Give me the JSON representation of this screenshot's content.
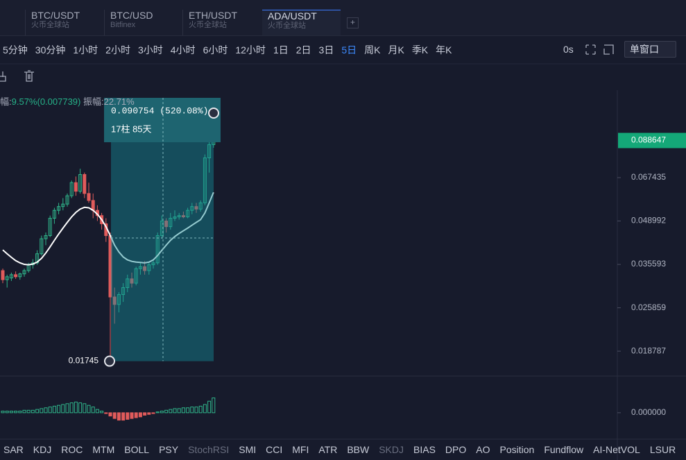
{
  "tabs": [
    {
      "symbol": "BTC/USDT",
      "exchange": "火币全球站"
    },
    {
      "symbol": "BTC/USD",
      "exchange": "Bitfinex"
    },
    {
      "symbol": "ETH/USDT",
      "exchange": "火币全球站"
    },
    {
      "symbol": "ADA/USDT",
      "exchange": "火币全球站"
    }
  ],
  "add_tab": "+",
  "intervals": [
    "5分钟",
    "30分钟",
    "1小时",
    "2小时",
    "3小时",
    "4小时",
    "6小时",
    "12小时",
    "1日",
    "2日",
    "3日",
    "5日",
    "周K",
    "月K",
    "季K",
    "年K"
  ],
  "countdown": "0s",
  "window_mode": "单窗口",
  "info": {
    "change_label": "幅:",
    "change": "9.57%(0.007739)",
    "amplitude_label": "振幅:",
    "amplitude": "22.71%"
  },
  "measure": {
    "price_change": "0.090754 (520.08%)",
    "span": "17柱 85天",
    "low": 0.01745
  },
  "price_axis": {
    "ylim": [
      0.0158,
      0.1284
    ],
    "log": true,
    "ticks": [
      0.067435,
      0.048992,
      0.035593,
      0.025859,
      0.018787
    ],
    "last_price": 0.088647
  },
  "candles": [
    [
      0.034,
      0.0345,
      0.031,
      0.0318
    ],
    [
      0.0318,
      0.033,
      0.03,
      0.0325
    ],
    [
      0.0322,
      0.0335,
      0.0315,
      0.033
    ],
    [
      0.033,
      0.0338,
      0.032,
      0.0325
    ],
    [
      0.0325,
      0.0335,
      0.0318,
      0.0332
    ],
    [
      0.0332,
      0.0345,
      0.0325,
      0.034
    ],
    [
      0.034,
      0.036,
      0.0335,
      0.0355
    ],
    [
      0.0355,
      0.037,
      0.0345,
      0.036
    ],
    [
      0.036,
      0.0395,
      0.0355,
      0.0385
    ],
    [
      0.0385,
      0.044,
      0.038,
      0.043
    ],
    [
      0.043,
      0.045,
      0.041,
      0.044
    ],
    [
      0.044,
      0.051,
      0.0435,
      0.05
    ],
    [
      0.05,
      0.054,
      0.048,
      0.053
    ],
    [
      0.053,
      0.056,
      0.0515,
      0.0545
    ],
    [
      0.0545,
      0.058,
      0.053,
      0.0555
    ],
    [
      0.0555,
      0.06,
      0.0545,
      0.059
    ],
    [
      0.059,
      0.066,
      0.058,
      0.065
    ],
    [
      0.065,
      0.068,
      0.059,
      0.061
    ],
    [
      0.061,
      0.072,
      0.06,
      0.069
    ],
    [
      0.069,
      0.07,
      0.058,
      0.06
    ],
    [
      0.06,
      0.065,
      0.056,
      0.057
    ],
    [
      0.057,
      0.06,
      0.05,
      0.053
    ],
    [
      0.053,
      0.055,
      0.049,
      0.051
    ],
    [
      0.051,
      0.052,
      0.046,
      0.048
    ],
    [
      0.048,
      0.05,
      0.042,
      0.044
    ],
    [
      0.044,
      0.045,
      0.01745,
      0.028
    ],
    [
      0.028,
      0.03,
      0.023,
      0.0265
    ],
    [
      0.0265,
      0.029,
      0.025,
      0.0285
    ],
    [
      0.0285,
      0.031,
      0.027,
      0.03
    ],
    [
      0.03,
      0.033,
      0.029,
      0.032
    ],
    [
      0.032,
      0.0335,
      0.03,
      0.031
    ],
    [
      0.031,
      0.035,
      0.0305,
      0.0345
    ],
    [
      0.0345,
      0.036,
      0.033,
      0.035
    ],
    [
      0.035,
      0.0365,
      0.033,
      0.034
    ],
    [
      0.034,
      0.036,
      0.033,
      0.0355
    ],
    [
      0.0355,
      0.037,
      0.0345,
      0.036
    ],
    [
      0.036,
      0.045,
      0.0355,
      0.044
    ],
    [
      0.044,
      0.051,
      0.043,
      0.049
    ],
    [
      0.049,
      0.05,
      0.045,
      0.047
    ],
    [
      0.047,
      0.052,
      0.046,
      0.05
    ],
    [
      0.05,
      0.053,
      0.049,
      0.0505
    ],
    [
      0.0505,
      0.052,
      0.0495,
      0.051
    ],
    [
      0.051,
      0.0525,
      0.05,
      0.0505
    ],
    [
      0.0505,
      0.054,
      0.05,
      0.053
    ],
    [
      0.053,
      0.056,
      0.0515,
      0.0545
    ],
    [
      0.0545,
      0.056,
      0.052,
      0.0535
    ],
    [
      0.0535,
      0.057,
      0.0525,
      0.056
    ],
    [
      0.056,
      0.08,
      0.055,
      0.078
    ],
    [
      0.078,
      0.088,
      0.07,
      0.086
    ],
    [
      0.086,
      0.0907,
      0.084,
      0.0886
    ]
  ],
  "ma": [
    0.0396,
    0.0385,
    0.0375,
    0.0366,
    0.036,
    0.0356,
    0.0355,
    0.0357,
    0.0362,
    0.0372,
    0.0387,
    0.0405,
    0.0425,
    0.0445,
    0.0465,
    0.0485,
    0.0505,
    0.0522,
    0.0535,
    0.0542,
    0.054,
    0.053,
    0.0515,
    0.0495,
    0.047,
    0.044,
    0.041,
    0.039,
    0.0376,
    0.0368,
    0.0364,
    0.0362,
    0.0361,
    0.036,
    0.0362,
    0.0368,
    0.038,
    0.0395,
    0.041,
    0.0425,
    0.0437,
    0.0447,
    0.0456,
    0.0465,
    0.0475,
    0.0485,
    0.0495,
    0.052,
    0.056,
    0.0605
  ],
  "macd": {
    "ylim": [
      -0.0038,
      0.0042
    ],
    "ticks": [
      {
        "value": 0,
        "label": "0.000000"
      }
    ],
    "values": [
      0.0002,
      0.0002,
      0.0002,
      0.0002,
      0.0002,
      0.0003,
      0.0003,
      0.0003,
      0.0004,
      0.0005,
      0.0006,
      0.0007,
      0.0008,
      0.0009,
      0.001,
      0.0011,
      0.0012,
      0.0013,
      0.0012,
      0.0011,
      0.0009,
      0.0007,
      0.0004,
      0.0002,
      -0.0001,
      -0.0004,
      -0.0007,
      -0.0009,
      -0.0009,
      -0.0008,
      -0.0007,
      -0.0006,
      -0.0005,
      -0.0003,
      -0.0002,
      -0.0001,
      0.0001,
      0.0002,
      0.0003,
      0.0004,
      0.0005,
      0.0005,
      0.0006,
      0.0006,
      0.0007,
      0.0007,
      0.0008,
      0.001,
      0.0014,
      0.0018
    ]
  },
  "indicators": [
    "SAR",
    "KDJ",
    "ROC",
    "MTM",
    "BOLL",
    "PSY",
    "StochRSI",
    "SMI",
    "CCI",
    "MFI",
    "ATR",
    "BBW",
    "SKDJ",
    "BIAS",
    "DPO",
    "AO",
    "Position",
    "Fundflow",
    "AI-NetVOL",
    "LSUR"
  ]
}
